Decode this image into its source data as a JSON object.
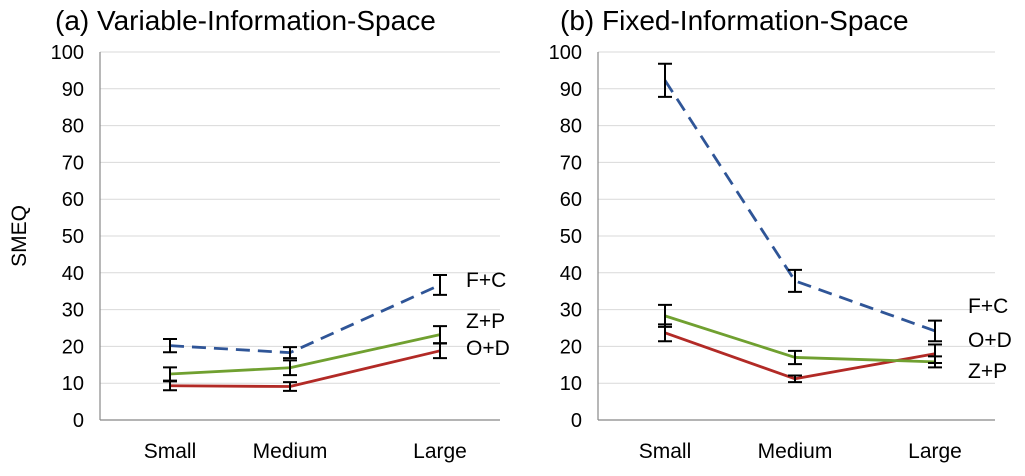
{
  "chart_data": [
    {
      "type": "line",
      "title": "(a) Variable-Information-Space",
      "ylabel": "SMEQ",
      "categories": [
        "Small",
        "Medium",
        "Large"
      ],
      "ylim": [
        0,
        100
      ],
      "yticks": [
        0,
        10,
        20,
        30,
        40,
        50,
        60,
        70,
        80,
        90,
        100
      ],
      "grid": true,
      "series": [
        {
          "name": "F+C",
          "color": "#2f5597",
          "dash": true,
          "values": [
            20.2,
            18.3,
            36.7
          ],
          "err": [
            1.8,
            1.5,
            2.7
          ]
        },
        {
          "name": "Z+P",
          "color": "#70a030",
          "dash": false,
          "values": [
            12.5,
            14.2,
            23.2
          ],
          "err": [
            1.8,
            2.0,
            2.3
          ]
        },
        {
          "name": "O+D",
          "color": "#b22a26",
          "dash": false,
          "values": [
            9.3,
            9.1,
            18.8
          ],
          "err": [
            1.2,
            1.2,
            2.0
          ]
        }
      ]
    },
    {
      "type": "line",
      "title": "(b) Fixed-Information-Space",
      "ylabel": "",
      "categories": [
        "Small",
        "Medium",
        "Large"
      ],
      "ylim": [
        0,
        100
      ],
      "yticks": [
        0,
        10,
        20,
        30,
        40,
        50,
        60,
        70,
        80,
        90,
        100
      ],
      "grid": true,
      "series": [
        {
          "name": "F+C",
          "color": "#2f5597",
          "dash": true,
          "values": [
            92.3,
            37.8,
            24.2
          ],
          "err": [
            4.5,
            3.0,
            2.8
          ]
        },
        {
          "name": "O+D",
          "color": "#b22a26",
          "dash": false,
          "values": [
            23.7,
            11.2,
            18.0
          ],
          "err": [
            2.3,
            0.9,
            2.5
          ]
        },
        {
          "name": "Z+P",
          "color": "#70a030",
          "dash": false,
          "values": [
            28.3,
            17.0,
            15.8
          ],
          "err": [
            3.0,
            1.8,
            1.5
          ]
        }
      ]
    }
  ]
}
